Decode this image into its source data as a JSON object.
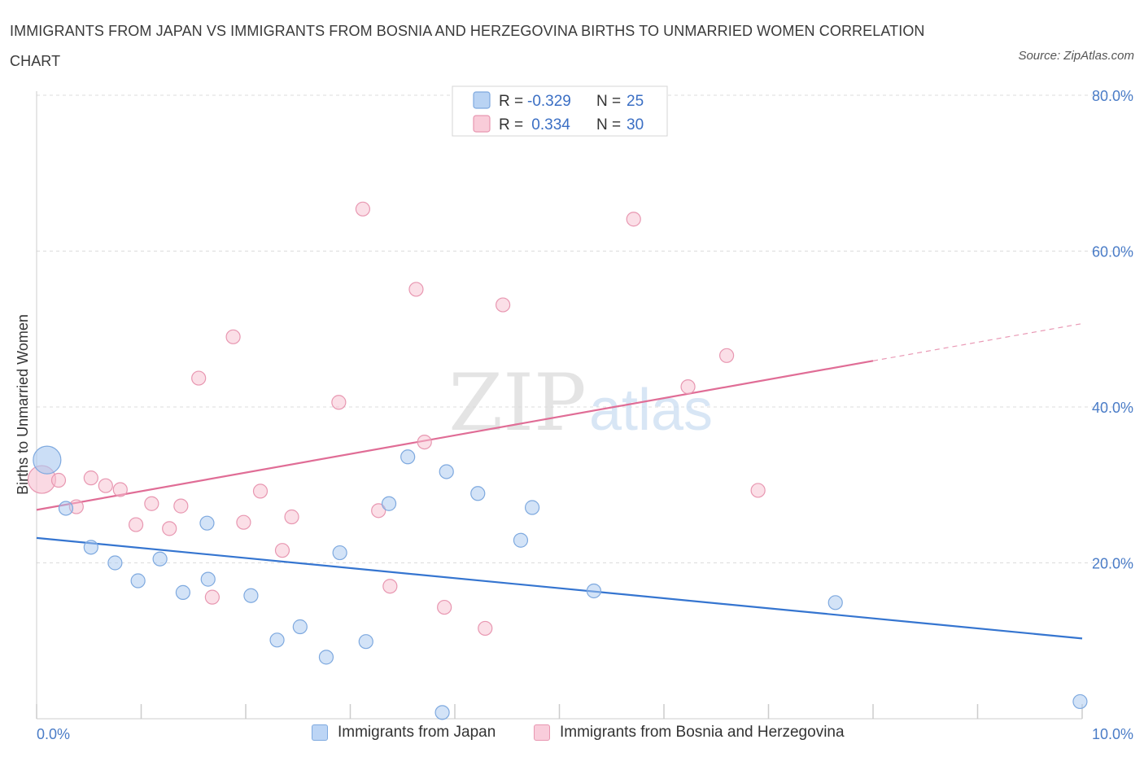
{
  "chart_data": {
    "type": "scatter",
    "title": "IMMIGRANTS FROM JAPAN VS IMMIGRANTS FROM BOSNIA AND HERZEGOVINA BIRTHS TO UNMARRIED WOMEN CORRELATION CHART",
    "source": "Source: ZipAtlas.com",
    "xlabel": "",
    "ylabel": "Births to Unmarried Women",
    "xlim": [
      0,
      10
    ],
    "ylim": [
      0,
      80
    ],
    "x_tick_labels": [
      "0.0%",
      "10.0%"
    ],
    "y_ticks": [
      20,
      40,
      60,
      80
    ],
    "y_tick_labels": [
      "20.0%",
      "40.0%",
      "60.0%",
      "80.0%"
    ],
    "grid": true,
    "legend": {
      "placement": "top-center",
      "rows": [
        {
          "r_label": "R =",
          "r_value": "-0.329",
          "n_label": "N =",
          "n_value": "25"
        },
        {
          "r_label": "R =",
          "r_value": " 0.334",
          "n_label": "N =",
          "n_value": "30"
        }
      ]
    },
    "series": [
      {
        "name": "Immigrants from Japan",
        "color": "#a8c8f0",
        "stroke": "#7ea9df",
        "line_color": "#3575d0",
        "trend": {
          "x": [
            0,
            10
          ],
          "y": [
            23.2,
            10.3
          ],
          "dashed_from": null
        },
        "points": [
          {
            "x": 0.1,
            "y": 33.2,
            "big": true
          },
          {
            "x": 0.28,
            "y": 27
          },
          {
            "x": 0.52,
            "y": 22
          },
          {
            "x": 0.75,
            "y": 20
          },
          {
            "x": 0.97,
            "y": 17.7
          },
          {
            "x": 1.18,
            "y": 20.5
          },
          {
            "x": 1.4,
            "y": 16.2
          },
          {
            "x": 1.63,
            "y": 25.1
          },
          {
            "x": 1.64,
            "y": 17.9
          },
          {
            "x": 2.05,
            "y": 15.8
          },
          {
            "x": 2.3,
            "y": 10.1
          },
          {
            "x": 2.52,
            "y": 11.8
          },
          {
            "x": 2.77,
            "y": 7.9
          },
          {
            "x": 2.9,
            "y": 21.3
          },
          {
            "x": 3.15,
            "y": 9.9
          },
          {
            "x": 3.37,
            "y": 27.6
          },
          {
            "x": 3.55,
            "y": 33.6
          },
          {
            "x": 3.88,
            "y": 0.8
          },
          {
            "x": 3.92,
            "y": 31.7
          },
          {
            "x": 4.22,
            "y": 28.9
          },
          {
            "x": 4.63,
            "y": 22.9
          },
          {
            "x": 4.74,
            "y": 27.1
          },
          {
            "x": 5.33,
            "y": 16.4
          },
          {
            "x": 7.64,
            "y": 14.9
          },
          {
            "x": 9.98,
            "y": 2.2
          }
        ]
      },
      {
        "name": "Immigrants from Bosnia and Herzegovina",
        "color": "#f7bfd0",
        "stroke": "#e897b1",
        "line_color": "#e06d96",
        "trend": {
          "x": [
            0,
            10
          ],
          "y": [
            26.8,
            50.7
          ],
          "dashed_from": 8.0
        },
        "points": [
          {
            "x": 0.05,
            "y": 30.7,
            "big": true
          },
          {
            "x": 0.21,
            "y": 30.6
          },
          {
            "x": 0.38,
            "y": 27.2
          },
          {
            "x": 0.52,
            "y": 30.9
          },
          {
            "x": 0.66,
            "y": 29.9
          },
          {
            "x": 0.8,
            "y": 29.4
          },
          {
            "x": 0.95,
            "y": 24.9
          },
          {
            "x": 1.1,
            "y": 27.6
          },
          {
            "x": 1.27,
            "y": 24.4
          },
          {
            "x": 1.38,
            "y": 27.3
          },
          {
            "x": 1.55,
            "y": 43.7
          },
          {
            "x": 1.68,
            "y": 15.6
          },
          {
            "x": 1.88,
            "y": 49
          },
          {
            "x": 1.98,
            "y": 25.2
          },
          {
            "x": 2.14,
            "y": 29.2
          },
          {
            "x": 2.35,
            "y": 21.6
          },
          {
            "x": 2.44,
            "y": 25.9
          },
          {
            "x": 2.89,
            "y": 40.6
          },
          {
            "x": 3.12,
            "y": 65.4
          },
          {
            "x": 3.27,
            "y": 26.7
          },
          {
            "x": 3.38,
            "y": 17
          },
          {
            "x": 3.63,
            "y": 55.1
          },
          {
            "x": 3.71,
            "y": 35.5
          },
          {
            "x": 3.9,
            "y": 14.3
          },
          {
            "x": 4.29,
            "y": 11.6
          },
          {
            "x": 4.46,
            "y": 53.1
          },
          {
            "x": 5.71,
            "y": 64.1
          },
          {
            "x": 6.23,
            "y": 42.6
          },
          {
            "x": 6.6,
            "y": 46.6
          },
          {
            "x": 6.9,
            "y": 29.3
          }
        ]
      }
    ]
  }
}
